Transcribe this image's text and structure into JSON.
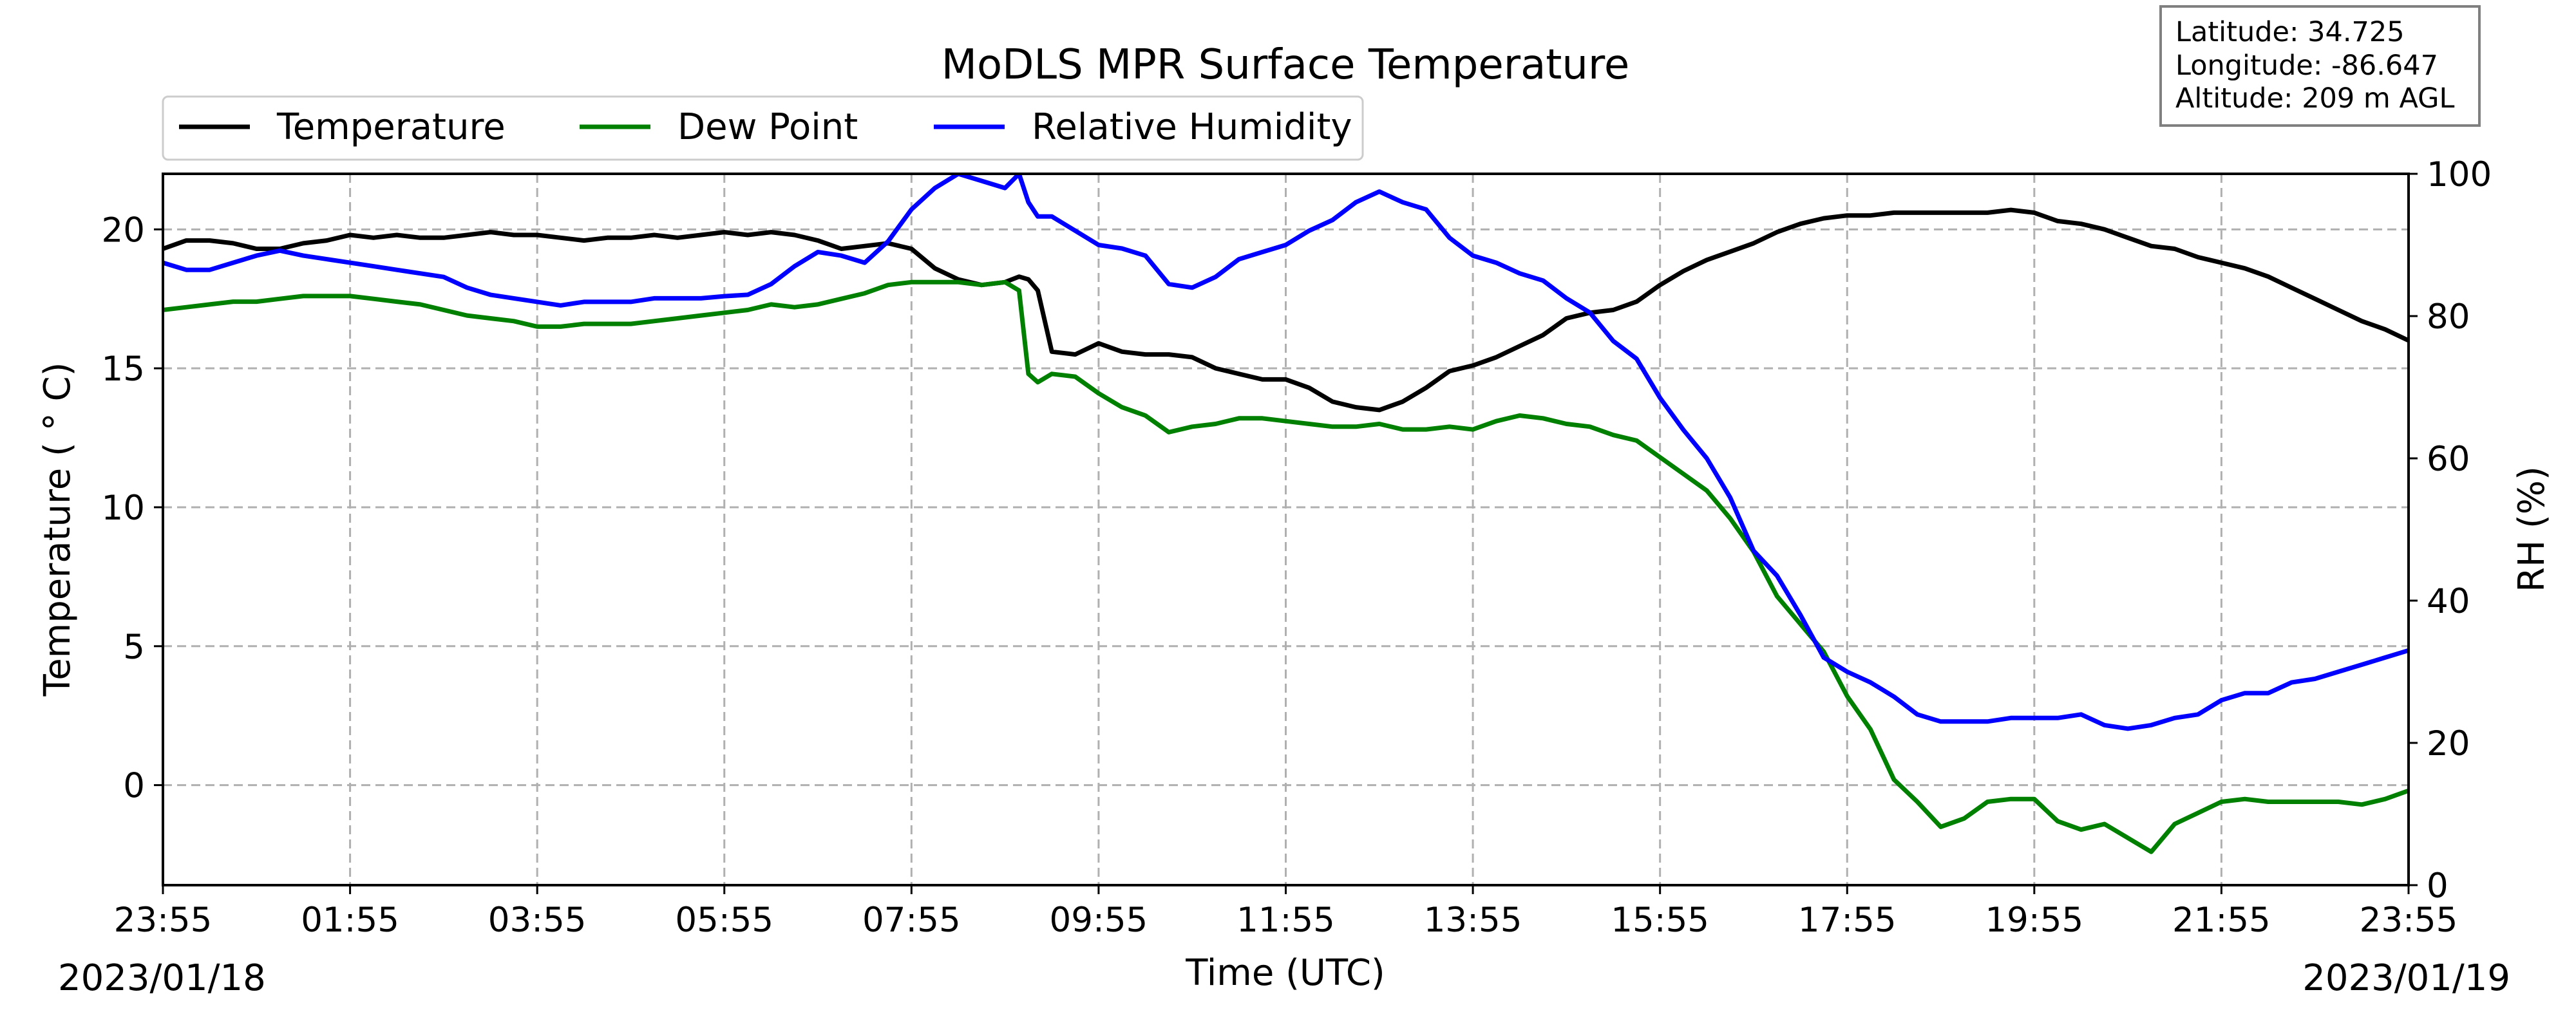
{
  "chart_data": {
    "type": "line",
    "title": "MoDLS MPR Surface Temperature",
    "xlabel": "Time (UTC)",
    "ylabel": "Temperature ($^\\circ$C)",
    "ylabel_display": "Temperature ( ° C)",
    "y2label": "RH (%)",
    "xlim_hours": [
      0,
      24
    ],
    "ylim": [
      -3.6,
      22
    ],
    "y2lim": [
      0,
      100
    ],
    "x_ticks": [
      0,
      2,
      4,
      6,
      8,
      10,
      12,
      14,
      16,
      18,
      20,
      22,
      24
    ],
    "x_tick_labels": [
      "23:55",
      "01:55",
      "03:55",
      "05:55",
      "07:55",
      "09:55",
      "11:55",
      "13:55",
      "15:55",
      "17:55",
      "19:55",
      "21:55",
      "23:55"
    ],
    "y_ticks": [
      0,
      5,
      10,
      15,
      20
    ],
    "y_tick_labels": [
      "0",
      "5",
      "10",
      "15",
      "20"
    ],
    "y2_ticks": [
      0,
      20,
      40,
      60,
      80,
      100
    ],
    "y2_tick_labels": [
      "0",
      "20",
      "40",
      "60",
      "80",
      "100"
    ],
    "start_date": "2023/01/18",
    "end_date": "2023/01/19",
    "grid": true,
    "legend": {
      "placement": "top-left, outside plot",
      "entries": [
        "Temperature",
        "Dew Point",
        "Relative Humidity"
      ]
    },
    "info_box": [
      "Latitude: 34.725",
      "Longitude: -86.647",
      "Altitude: 209 m AGL"
    ],
    "series": [
      {
        "name": "Temperature",
        "axis": "left",
        "color": "#000000",
        "x": [
          0.0,
          0.25,
          0.5,
          0.75,
          1.0,
          1.25,
          1.5,
          1.75,
          2.0,
          2.25,
          2.5,
          2.75,
          3.0,
          3.25,
          3.5,
          3.75,
          4.0,
          4.25,
          4.5,
          4.75,
          5.0,
          5.25,
          5.5,
          5.75,
          6.0,
          6.25,
          6.5,
          6.75,
          7.0,
          7.25,
          7.5,
          7.75,
          8.0,
          8.25,
          8.5,
          8.75,
          9.0,
          9.15,
          9.25,
          9.35,
          9.5,
          9.75,
          10.0,
          10.25,
          10.5,
          10.75,
          11.0,
          11.25,
          11.5,
          11.75,
          12.0,
          12.25,
          12.5,
          12.75,
          13.0,
          13.25,
          13.5,
          13.75,
          14.0,
          14.25,
          14.5,
          14.75,
          15.0,
          15.25,
          15.5,
          15.75,
          16.0,
          16.25,
          16.5,
          16.75,
          17.0,
          17.25,
          17.5,
          17.75,
          18.0,
          18.25,
          18.5,
          18.75,
          19.0,
          19.25,
          19.5,
          19.75,
          20.0,
          20.25,
          20.5,
          20.75,
          21.0,
          21.25,
          21.5,
          21.75,
          22.0,
          22.25,
          22.5,
          22.75,
          23.0,
          23.25,
          23.5,
          23.75,
          24.0
        ],
        "y": [
          19.3,
          19.6,
          19.6,
          19.5,
          19.3,
          19.3,
          19.5,
          19.6,
          19.8,
          19.7,
          19.8,
          19.7,
          19.7,
          19.8,
          19.9,
          19.8,
          19.8,
          19.7,
          19.6,
          19.7,
          19.7,
          19.8,
          19.7,
          19.8,
          19.9,
          19.8,
          19.9,
          19.8,
          19.6,
          19.3,
          19.4,
          19.5,
          19.3,
          18.6,
          18.2,
          18.0,
          18.1,
          18.3,
          18.2,
          17.8,
          15.6,
          15.5,
          15.9,
          15.6,
          15.5,
          15.5,
          15.4,
          15.0,
          14.8,
          14.6,
          14.6,
          14.3,
          13.8,
          13.6,
          13.5,
          13.8,
          14.3,
          14.9,
          15.1,
          15.4,
          15.8,
          16.2,
          16.8,
          17.0,
          17.1,
          17.4,
          18.0,
          18.5,
          18.9,
          19.2,
          19.5,
          19.9,
          20.2,
          20.4,
          20.5,
          20.5,
          20.6,
          20.6,
          20.6,
          20.6,
          20.6,
          20.7,
          20.6,
          20.3,
          20.2,
          20.0,
          19.7,
          19.4,
          19.3,
          19.0,
          18.8,
          18.6,
          18.3,
          17.9,
          17.5,
          17.1,
          16.7,
          16.4,
          16.0
        ]
      },
      {
        "name": "Dew Point",
        "axis": "left",
        "color": "#008000",
        "x": [
          0.0,
          0.25,
          0.5,
          0.75,
          1.0,
          1.25,
          1.5,
          1.75,
          2.0,
          2.25,
          2.5,
          2.75,
          3.0,
          3.25,
          3.5,
          3.75,
          4.0,
          4.25,
          4.5,
          4.75,
          5.0,
          5.25,
          5.5,
          5.75,
          6.0,
          6.25,
          6.5,
          6.75,
          7.0,
          7.25,
          7.5,
          7.75,
          8.0,
          8.25,
          8.5,
          8.75,
          9.0,
          9.15,
          9.25,
          9.35,
          9.5,
          9.75,
          10.0,
          10.25,
          10.5,
          10.75,
          11.0,
          11.25,
          11.5,
          11.75,
          12.0,
          12.25,
          12.5,
          12.75,
          13.0,
          13.25,
          13.5,
          13.75,
          14.0,
          14.25,
          14.5,
          14.75,
          15.0,
          15.25,
          15.5,
          15.75,
          16.0,
          16.25,
          16.5,
          16.75,
          17.0,
          17.25,
          17.5,
          17.75,
          18.0,
          18.25,
          18.5,
          18.75,
          19.0,
          19.25,
          19.5,
          19.75,
          20.0,
          20.25,
          20.5,
          20.75,
          21.0,
          21.25,
          21.5,
          21.75,
          22.0,
          22.25,
          22.5,
          22.75,
          23.0,
          23.25,
          23.5,
          23.75,
          24.0
        ],
        "y": [
          17.1,
          17.2,
          17.3,
          17.4,
          17.4,
          17.5,
          17.6,
          17.6,
          17.6,
          17.5,
          17.4,
          17.3,
          17.1,
          16.9,
          16.8,
          16.7,
          16.5,
          16.5,
          16.6,
          16.6,
          16.6,
          16.7,
          16.8,
          16.9,
          17.0,
          17.1,
          17.3,
          17.2,
          17.3,
          17.5,
          17.7,
          18.0,
          18.1,
          18.1,
          18.1,
          18.0,
          18.1,
          17.8,
          14.8,
          14.5,
          14.8,
          14.7,
          14.1,
          13.6,
          13.3,
          12.7,
          12.9,
          13.0,
          13.2,
          13.2,
          13.1,
          13.0,
          12.9,
          12.9,
          13.0,
          12.8,
          12.8,
          12.9,
          12.8,
          13.1,
          13.3,
          13.2,
          13.0,
          12.9,
          12.6,
          12.4,
          11.8,
          11.2,
          10.6,
          9.6,
          8.4,
          6.8,
          5.8,
          4.8,
          3.2,
          2.0,
          0.2,
          -0.6,
          -1.5,
          -1.2,
          -0.6,
          -0.5,
          -0.5,
          -1.3,
          -1.6,
          -1.4,
          -1.9,
          -2.4,
          -1.4,
          -1.0,
          -0.6,
          -0.5,
          -0.6,
          -0.6,
          -0.6,
          -0.6,
          -0.7,
          -0.5,
          -0.2
        ]
      },
      {
        "name": "Relative Humidity",
        "axis": "right",
        "color": "#0000ff",
        "x": [
          0.0,
          0.25,
          0.5,
          0.75,
          1.0,
          1.25,
          1.5,
          1.75,
          2.0,
          2.25,
          2.5,
          2.75,
          3.0,
          3.25,
          3.5,
          3.75,
          4.0,
          4.25,
          4.5,
          4.75,
          5.0,
          5.25,
          5.5,
          5.75,
          6.0,
          6.25,
          6.5,
          6.75,
          7.0,
          7.25,
          7.5,
          7.75,
          8.0,
          8.25,
          8.5,
          8.75,
          9.0,
          9.15,
          9.25,
          9.35,
          9.5,
          9.75,
          10.0,
          10.25,
          10.5,
          10.75,
          11.0,
          11.25,
          11.5,
          11.75,
          12.0,
          12.25,
          12.5,
          12.75,
          13.0,
          13.25,
          13.5,
          13.75,
          14.0,
          14.25,
          14.5,
          14.75,
          15.0,
          15.25,
          15.5,
          15.75,
          16.0,
          16.25,
          16.5,
          16.75,
          17.0,
          17.25,
          17.5,
          17.75,
          18.0,
          18.25,
          18.5,
          18.75,
          19.0,
          19.25,
          19.5,
          19.75,
          20.0,
          20.25,
          20.5,
          20.75,
          21.0,
          21.25,
          21.5,
          21.75,
          22.0,
          22.25,
          22.5,
          22.75,
          23.0,
          23.25,
          23.5,
          23.75,
          24.0
        ],
        "y": [
          87.5,
          86.5,
          86.5,
          87.5,
          88.5,
          89.2,
          88.5,
          88.0,
          87.5,
          87.0,
          86.5,
          86.0,
          85.5,
          84.0,
          83.0,
          82.5,
          82.0,
          81.5,
          82.0,
          82.0,
          82.0,
          82.5,
          82.5,
          82.5,
          82.8,
          83.0,
          84.5,
          87.0,
          89.0,
          88.5,
          87.5,
          90.5,
          95.0,
          98.0,
          100.0,
          99.0,
          98.0,
          100.0,
          96.0,
          94.0,
          94.0,
          92.0,
          90.0,
          89.5,
          88.5,
          84.5,
          84.0,
          85.5,
          88.0,
          89.0,
          90.0,
          92.0,
          93.5,
          96.0,
          97.5,
          96.0,
          95.0,
          91.0,
          88.5,
          87.5,
          86.0,
          85.0,
          82.5,
          80.5,
          76.5,
          74.0,
          68.5,
          64.0,
          60.0,
          54.5,
          47.0,
          43.5,
          38.0,
          32.0,
          30.0,
          28.5,
          26.5,
          24.0,
          23.0,
          23.0,
          23.0,
          23.5,
          23.5,
          23.5,
          24.0,
          22.5,
          22.0,
          22.5,
          23.5,
          24.0,
          26.0,
          27.0,
          27.0,
          28.5,
          29.0,
          30.0,
          31.0,
          32.0,
          33.0
        ]
      }
    ]
  },
  "colors": {
    "temperature": "#000000",
    "dew_point": "#008000",
    "relative_humidity": "#0000ff",
    "grid": "#b0b0b0",
    "axes": "#000000"
  }
}
